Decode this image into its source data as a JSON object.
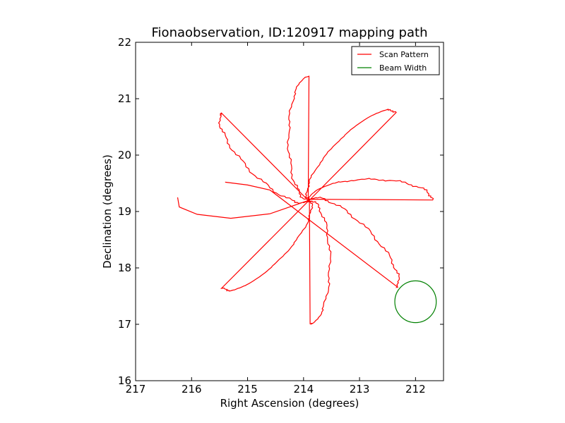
{
  "chart_data": {
    "type": "line",
    "title": "Fionaobservation, ID:120917 mapping path",
    "xlabel": "Right Ascension (degrees)",
    "ylabel": "Declination (degrees)",
    "xlim": [
      217,
      211.5
    ],
    "ylim": [
      16,
      22
    ],
    "x_inverted": true,
    "xticks": [
      217,
      216,
      215,
      214,
      213,
      212
    ],
    "yticks": [
      16,
      17,
      18,
      19,
      20,
      21,
      22
    ],
    "grid": false,
    "legend_position": "top-right",
    "series": [
      {
        "name": "Scan Pattern",
        "color": "#ff0000",
        "marker": "none",
        "pattern": "rose",
        "center": [
          213.9,
          19.2
        ],
        "petals": 8,
        "petal_length": 2.2,
        "petal_half_width": 0.37,
        "truncated_petal_end": [
          215.4,
          19.52
        ],
        "truncated_petal_start": [
          216.25,
          19.25
        ]
      },
      {
        "name": "Beam Width",
        "color": "#008000",
        "marker": "none",
        "shape": "circle",
        "center": [
          212.0,
          17.4
        ],
        "radius": 0.37
      }
    ]
  }
}
